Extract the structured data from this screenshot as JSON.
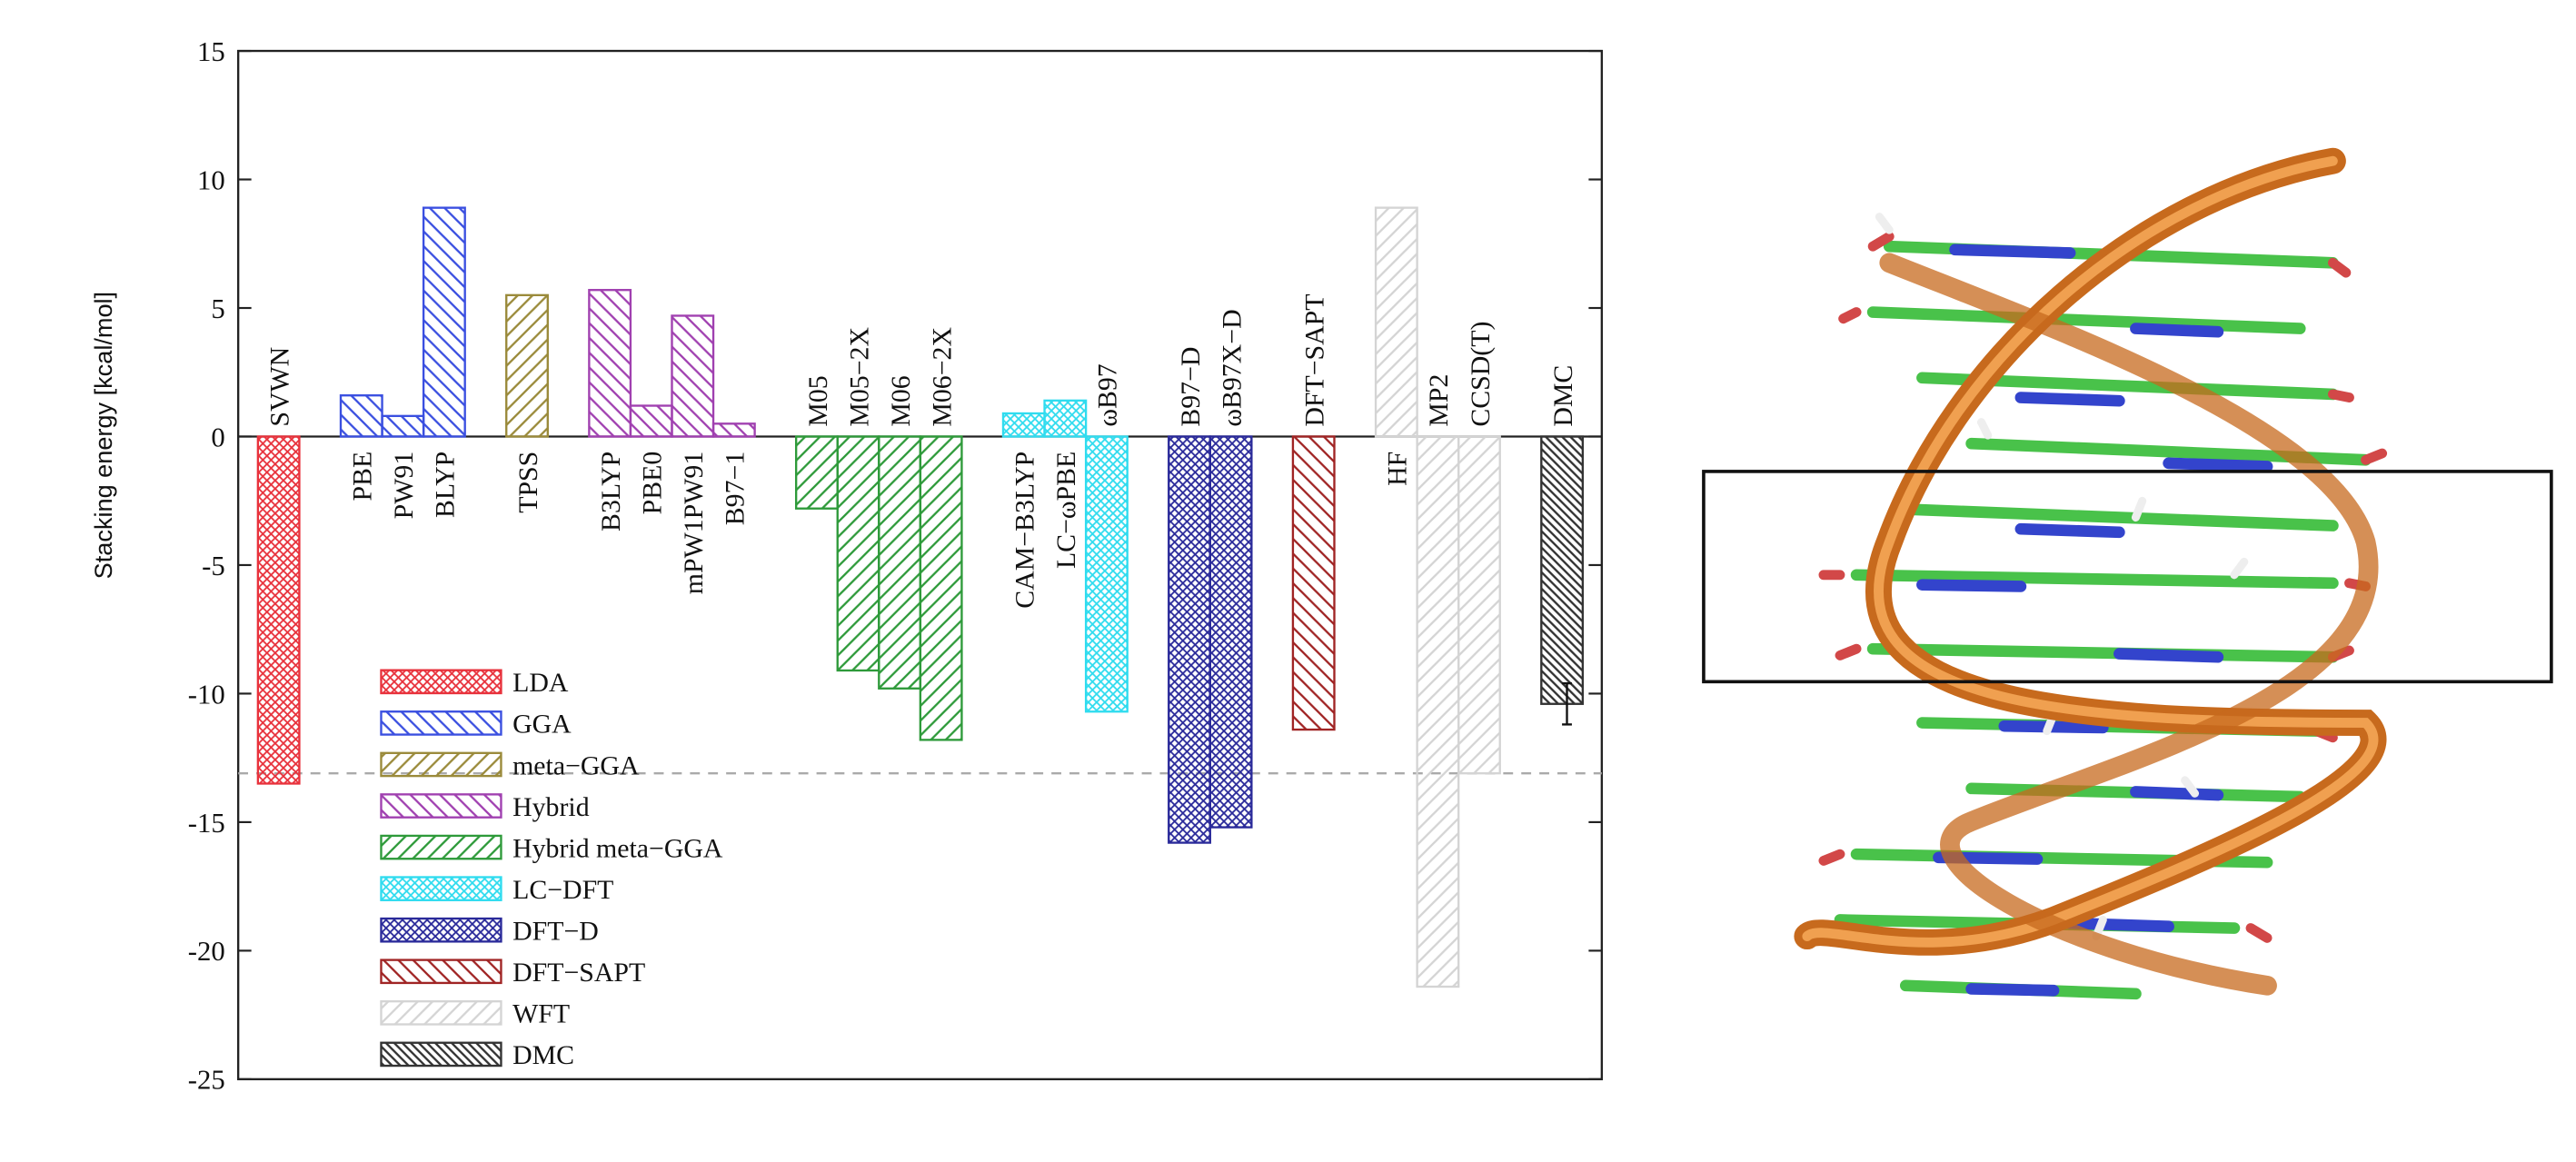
{
  "chart_data": {
    "type": "bar",
    "y_label": "Stacking energy [kcal/mol]",
    "categories": [
      "SVWN",
      "PBE",
      "PW91",
      "BLYP",
      "TPSS",
      "B3LYP",
      "PBE0",
      "mPW1PW91",
      "B97−1",
      "M05",
      "M05−2X",
      "M06",
      "M06−2X",
      "CAM−B3LYP",
      "LC−ωPBE",
      "ωB97",
      "B97−D",
      "ωB97X−D",
      "DFT−SAPT",
      "HF",
      "MP2",
      "CCSD(T)",
      "DMC"
    ],
    "series": [
      {
        "name": "LDA",
        "color": "#e8323c",
        "values": [
          -13.5,
          null,
          null,
          null,
          null,
          null,
          null,
          null,
          null,
          null,
          null,
          null,
          null,
          null,
          null,
          null,
          null,
          null,
          null,
          null,
          null,
          null,
          null
        ]
      },
      {
        "name": "GGA",
        "color": "#3a4fe0",
        "values": [
          null,
          1.6,
          0.8,
          8.9,
          null,
          null,
          null,
          null,
          null,
          null,
          null,
          null,
          null,
          null,
          null,
          null,
          null,
          null,
          null,
          null,
          null,
          null,
          null
        ]
      },
      {
        "name": "meta−GGA",
        "color": "#9a8a3a",
        "values": [
          null,
          null,
          null,
          null,
          5.5,
          null,
          null,
          null,
          null,
          null,
          null,
          null,
          null,
          null,
          null,
          null,
          null,
          null,
          null,
          null,
          null,
          null,
          null
        ]
      },
      {
        "name": "Hybrid",
        "color": "#a040b0",
        "values": [
          null,
          null,
          null,
          null,
          null,
          5.7,
          1.2,
          4.7,
          0.5,
          null,
          null,
          null,
          null,
          null,
          null,
          null,
          null,
          null,
          null,
          null,
          null,
          null,
          null
        ]
      },
      {
        "name": "Hybrid meta−GGA",
        "color": "#2e9a3a",
        "values": [
          null,
          null,
          null,
          null,
          null,
          null,
          null,
          null,
          null,
          -2.8,
          -9.1,
          -9.8,
          -11.8,
          null,
          null,
          null,
          null,
          null,
          null,
          null,
          null,
          null,
          null
        ]
      },
      {
        "name": "LC−DFT",
        "color": "#30dcef",
        "values": [
          null,
          null,
          null,
          null,
          null,
          null,
          null,
          null,
          null,
          null,
          null,
          null,
          null,
          0.9,
          1.4,
          -10.7,
          null,
          null,
          null,
          null,
          null,
          null,
          null
        ]
      },
      {
        "name": "DFT−D",
        "color": "#2a2a9a",
        "values": [
          null,
          null,
          null,
          null,
          null,
          null,
          null,
          null,
          null,
          null,
          null,
          null,
          null,
          null,
          null,
          null,
          -15.8,
          -15.2,
          null,
          null,
          null,
          null,
          null
        ]
      },
      {
        "name": "DFT−SAPT",
        "color": "#a02424",
        "values": [
          null,
          null,
          null,
          null,
          null,
          null,
          null,
          null,
          null,
          null,
          null,
          null,
          null,
          null,
          null,
          null,
          null,
          null,
          -11.4,
          null,
          null,
          null,
          null
        ]
      },
      {
        "name": "WFT",
        "color": "#d4d4d4",
        "values": [
          null,
          null,
          null,
          null,
          null,
          null,
          null,
          null,
          null,
          null,
          null,
          null,
          null,
          null,
          null,
          null,
          null,
          null,
          null,
          8.9,
          -21.4,
          -13.1,
          null
        ]
      },
      {
        "name": "DMC",
        "color": "#333333",
        "values": [
          null,
          null,
          null,
          null,
          null,
          null,
          null,
          null,
          null,
          null,
          null,
          null,
          null,
          null,
          null,
          null,
          null,
          null,
          null,
          null,
          null,
          null,
          -10.4
        ],
        "errors": [
          null,
          null,
          null,
          null,
          null,
          null,
          null,
          null,
          null,
          null,
          null,
          null,
          null,
          null,
          null,
          null,
          null,
          null,
          null,
          null,
          null,
          null,
          0.8
        ]
      }
    ],
    "reference_line": "CCSD(T)",
    "ylim": [
      -25,
      15
    ],
    "yticks": [
      -25,
      -20,
      -15,
      -10,
      -5,
      0,
      5,
      10,
      15
    ],
    "legend": "lower left"
  }
}
